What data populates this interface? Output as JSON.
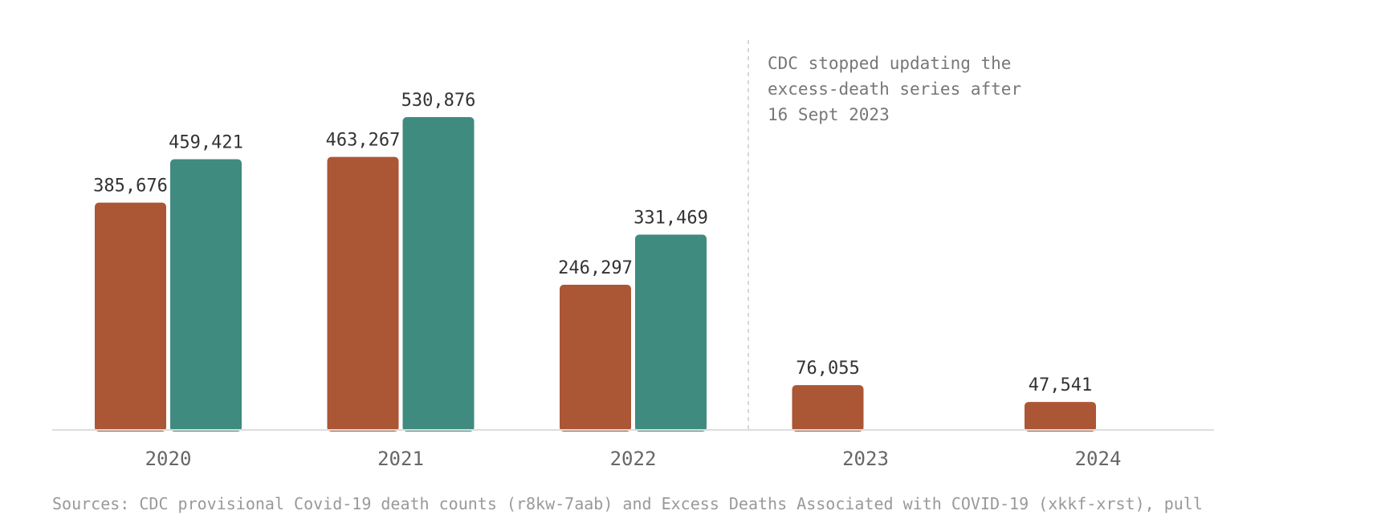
{
  "chart_data": {
    "type": "bar",
    "title": "",
    "xlabel": "",
    "ylabel": "",
    "categories": [
      "2020",
      "2021",
      "2022",
      "2023",
      "2024"
    ],
    "series": [
      {
        "color": "#ab5635",
        "values": [
          385676,
          463267,
          246297,
          76055,
          47541
        ],
        "labels": [
          "385,676",
          "463,267",
          "246,297",
          "76,055",
          "47,541"
        ]
      },
      {
        "color": "#3f8b7f",
        "values": [
          459421,
          530876,
          331469,
          null,
          null
        ],
        "labels": [
          "459,421",
          "530,876",
          "331,469",
          "",
          ""
        ]
      }
    ],
    "ylim": [
      0,
      530876
    ],
    "grid": false,
    "annotation": {
      "after_category": "2022",
      "lines": [
        "CDC stopped updating the",
        "excess-death series after",
        "16 Sept 2023"
      ]
    },
    "source": "Sources: CDC provisional Covid-19 death counts (r8kw-7aab) and Excess Deaths Associated with COVID-19 (xkkf-xrst), pull"
  }
}
